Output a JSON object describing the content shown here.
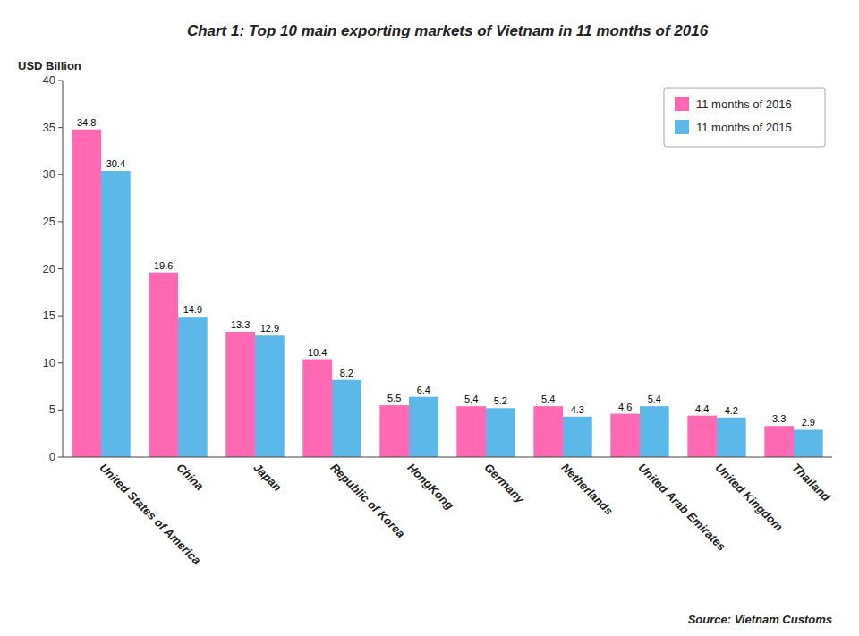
{
  "chart_data": {
    "type": "bar",
    "title": "Chart 1: Top 10 main exporting markets of Vietnam in 11 months of 2016",
    "y_label": "USD Billion",
    "annotations": [
      "Source: Vietnam Customs"
    ],
    "categories": [
      "United States of America",
      "China",
      "Japan",
      "Republic of Korea",
      "HongKong",
      "Germany",
      "Netherlands",
      "United Arab Emirates",
      "United Kingdom",
      "Thailand"
    ],
    "series": [
      {
        "name": "11 months of 2016",
        "color": "#FF69B4",
        "values": [
          34.8,
          19.6,
          13.3,
          10.4,
          5.5,
          5.4,
          5.4,
          4.6,
          4.4,
          3.3
        ]
      },
      {
        "name": "11 months of 2015",
        "color": "#5BB8E8",
        "values": [
          30.4,
          14.9,
          12.9,
          8.2,
          6.4,
          5.2,
          4.3,
          5.4,
          4.2,
          2.9
        ]
      }
    ],
    "ylim": [
      0,
      40
    ],
    "yticks": [
      0,
      5,
      10,
      15,
      20,
      25,
      30,
      35,
      40
    ],
    "data_labels": true,
    "grid": false,
    "legend": "upper right"
  }
}
